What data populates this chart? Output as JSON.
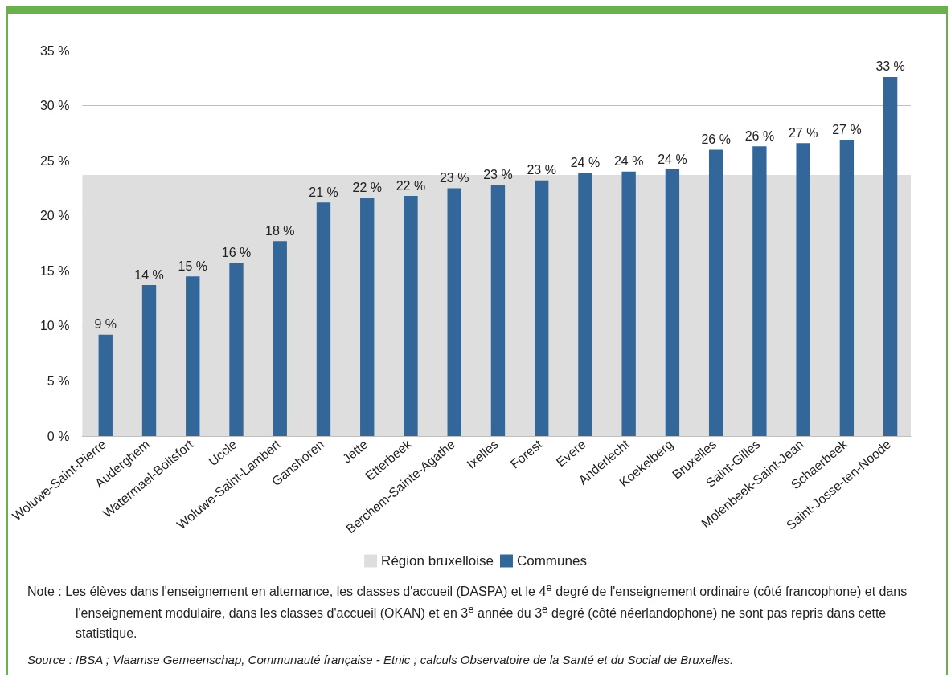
{
  "chart_data": {
    "type": "bar",
    "categories": [
      "Woluwe-Saint-Pierre",
      "Auderghem",
      "Watermael-Boitsfort",
      "Uccle",
      "Woluwe-Saint-Lambert",
      "Ganshoren",
      "Jette",
      "Etterbeek",
      "Berchem-Sainte-Agathe",
      "Ixelles",
      "Forest",
      "Evere",
      "Anderlecht",
      "Koekelberg",
      "Bruxelles",
      "Saint-Gilles",
      "Molenbeek-Saint-Jean",
      "Schaerbeek",
      "Saint-Josse-ten-Noode"
    ],
    "series": [
      {
        "name": "Communes",
        "color": "#336699",
        "values": [
          9.2,
          13.7,
          14.5,
          15.7,
          17.7,
          21.2,
          21.6,
          21.8,
          22.5,
          22.8,
          23.2,
          23.9,
          24.0,
          24.2,
          26.0,
          26.3,
          26.6,
          26.9,
          32.6
        ],
        "value_labels": [
          "9 %",
          "14 %",
          "15 %",
          "16 %",
          "18 %",
          "21 %",
          "22 %",
          "22 %",
          "23 %",
          "23 %",
          "23 %",
          "24 %",
          "24 %",
          "24 %",
          "26 %",
          "26 %",
          "27 %",
          "27 %",
          "33 %"
        ]
      }
    ],
    "ylim": [
      0,
      35
    ],
    "yticks": [
      {
        "value": 0,
        "label": "0 %"
      },
      {
        "value": 5,
        "label": "5 %"
      },
      {
        "value": 10,
        "label": "10 %"
      },
      {
        "value": 15,
        "label": "15 %"
      },
      {
        "value": 20,
        "label": "20 %"
      },
      {
        "value": 25,
        "label": "25 %"
      },
      {
        "value": 30,
        "label": "30 %"
      },
      {
        "value": 35,
        "label": "35 %"
      }
    ],
    "bands": [
      {
        "axis": "y",
        "from": 0,
        "to": 23.7,
        "label": "Région bruxelloise",
        "color": "#dedede"
      }
    ],
    "grid": "y",
    "legend": "bottom",
    "annotations": [
      "Note : Les élèves dans l'enseignement en alternance, les classes d'accueil (DASPA) et le 4$^{e}$ degré de l'enseignement ordinaire (côté francophone) et dans l'enseignement modulaire, dans les classes d'accueil (OKAN) et en 3$^{e}$ année du 3$^{e}$ degré (côté néerlandophone) ne sont pas repris dans cette statistique.",
      "Source : IBSA ; Vlaamse Gemeenschap, Communauté française - Etnic ; calculs Observatoire de la Santé et du Social de Bruxelles."
    ]
  }
}
